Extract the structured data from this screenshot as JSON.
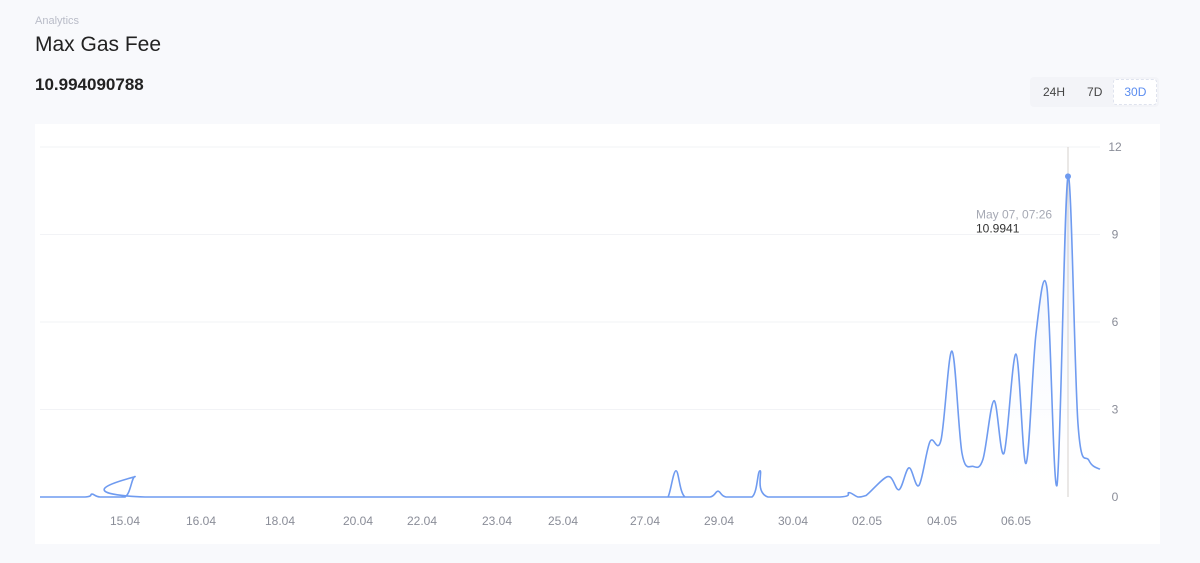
{
  "header": {
    "breadcrumb": "Analytics",
    "title": "Max Gas Fee",
    "current_value": "10.994090788"
  },
  "ranges": [
    {
      "label": "24H",
      "active": false
    },
    {
      "label": "7D",
      "active": false
    },
    {
      "label": "30D",
      "active": true
    }
  ],
  "colors": {
    "line": "#6f9bf0",
    "fill": "#e8effd",
    "accent": "#5b8df0",
    "cursor": "#d6d0cc"
  },
  "chart_data": {
    "type": "area",
    "ylim": [
      0,
      12
    ],
    "yticks": [
      0,
      3,
      6,
      9,
      12
    ],
    "grid": true,
    "x_range": [
      0,
      212
    ],
    "xticks": [
      {
        "x": 17,
        "label": "15.04"
      },
      {
        "x": 32.2,
        "label": "16.04"
      },
      {
        "x": 48,
        "label": "18.04"
      },
      {
        "x": 63.6,
        "label": "20.04"
      },
      {
        "x": 76.4,
        "label": "22.04"
      },
      {
        "x": 91.4,
        "label": "23.04"
      },
      {
        "x": 104.6,
        "label": "25.04"
      },
      {
        "x": 121,
        "label": "27.04"
      },
      {
        "x": 135.8,
        "label": "29.04"
      },
      {
        "x": 150.6,
        "label": "30.04"
      },
      {
        "x": 165.4,
        "label": "02.05"
      },
      {
        "x": 180.4,
        "label": "04.05"
      },
      {
        "x": 195.2,
        "label": "06.05"
      }
    ],
    "points": [
      [
        0,
        0
      ],
      [
        9,
        0
      ],
      [
        10.4,
        0.1
      ],
      [
        12,
        0
      ],
      [
        17,
        0
      ],
      [
        19,
        0.7
      ],
      [
        21,
        0
      ],
      [
        124,
        0
      ],
      [
        125.6,
        0
      ],
      [
        127.2,
        0.9
      ],
      [
        129,
        0
      ],
      [
        134,
        0
      ],
      [
        135.6,
        0.2
      ],
      [
        137.2,
        0
      ],
      [
        142.4,
        0
      ],
      [
        144,
        0.9
      ],
      [
        145.6,
        0
      ],
      [
        160,
        0
      ],
      [
        161.8,
        0.15
      ],
      [
        163.6,
        0
      ],
      [
        165.2,
        0.05
      ],
      [
        169.6,
        0.7
      ],
      [
        171.8,
        0.25
      ],
      [
        173.8,
        1.0
      ],
      [
        175.8,
        0.4
      ],
      [
        178,
        1.9
      ],
      [
        180.2,
        1.95
      ],
      [
        182.4,
        5.0
      ],
      [
        184.4,
        1.5
      ],
      [
        186.6,
        1.05
      ],
      [
        188.6,
        1.3
      ],
      [
        190.8,
        3.3
      ],
      [
        192.8,
        1.5
      ],
      [
        195.2,
        4.9
      ],
      [
        197.2,
        1.15
      ],
      [
        199.2,
        5.6
      ],
      [
        201.4,
        7.15
      ],
      [
        203.4,
        0.4
      ],
      [
        205.6,
        10.99
      ],
      [
        207.6,
        2.5
      ],
      [
        209.8,
        1.25
      ],
      [
        212,
        0.95
      ]
    ],
    "tooltip": {
      "x": 205.6,
      "value": 10.9941,
      "date": "May 07, 07:26",
      "value_label": "10.9941"
    }
  }
}
